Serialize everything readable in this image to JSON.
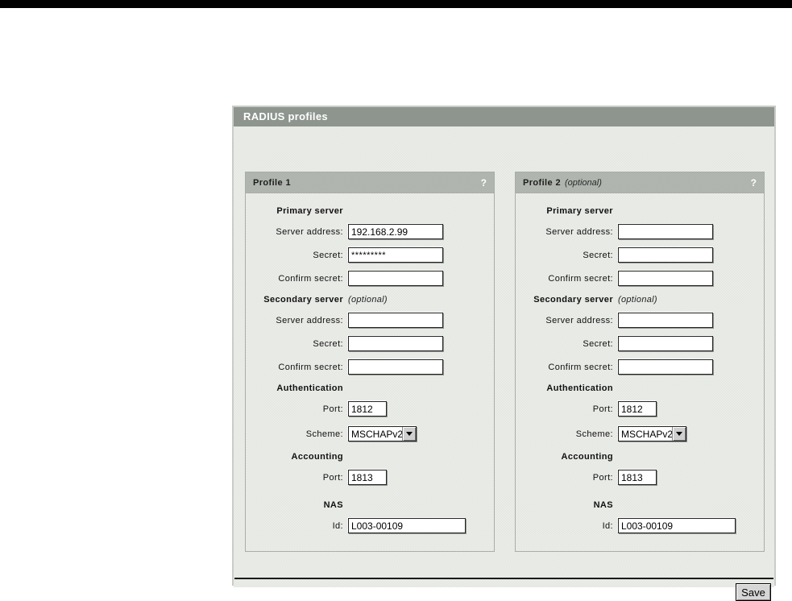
{
  "window": {
    "title": "RADIUS profiles"
  },
  "footer": {
    "save_label": "Save"
  },
  "profiles": [
    {
      "title": "Profile 1",
      "title_note": "",
      "help": "?",
      "primary": {
        "heading": "Primary server",
        "note": "",
        "server_address_label": "Server address:",
        "server_address": "192.168.2.99",
        "secret_label": "Secret:",
        "secret": "*********",
        "confirm_label": "Confirm secret:",
        "confirm": ""
      },
      "secondary": {
        "heading": "Secondary server",
        "note": "(optional)",
        "server_address_label": "Server address:",
        "server_address": "",
        "secret_label": "Secret:",
        "secret": "",
        "confirm_label": "Confirm secret:",
        "confirm": ""
      },
      "authentication": {
        "heading": "Authentication",
        "port_label": "Port:",
        "port": "1812",
        "scheme_label": "Scheme:",
        "scheme": "MSCHAPv2"
      },
      "accounting": {
        "heading": "Accounting",
        "port_label": "Port:",
        "port": "1813"
      },
      "nas": {
        "heading": "NAS",
        "id_label": "Id:",
        "id": "L003-00109"
      }
    },
    {
      "title": "Profile 2",
      "title_note": "(optional)",
      "help": "?",
      "primary": {
        "heading": "Primary server",
        "note": "",
        "server_address_label": "Server address:",
        "server_address": "",
        "secret_label": "Secret:",
        "secret": "",
        "confirm_label": "Confirm secret:",
        "confirm": ""
      },
      "secondary": {
        "heading": "Secondary server",
        "note": "(optional)",
        "server_address_label": "Server address:",
        "server_address": "",
        "secret_label": "Secret:",
        "secret": "",
        "confirm_label": "Confirm secret:",
        "confirm": ""
      },
      "authentication": {
        "heading": "Authentication",
        "port_label": "Port:",
        "port": "1812",
        "scheme_label": "Scheme:",
        "scheme": "MSCHAPv2"
      },
      "accounting": {
        "heading": "Accounting",
        "port_label": "Port:",
        "port": "1813"
      },
      "nas": {
        "heading": "NAS",
        "id_label": "Id:",
        "id": "L003-00109"
      }
    }
  ]
}
